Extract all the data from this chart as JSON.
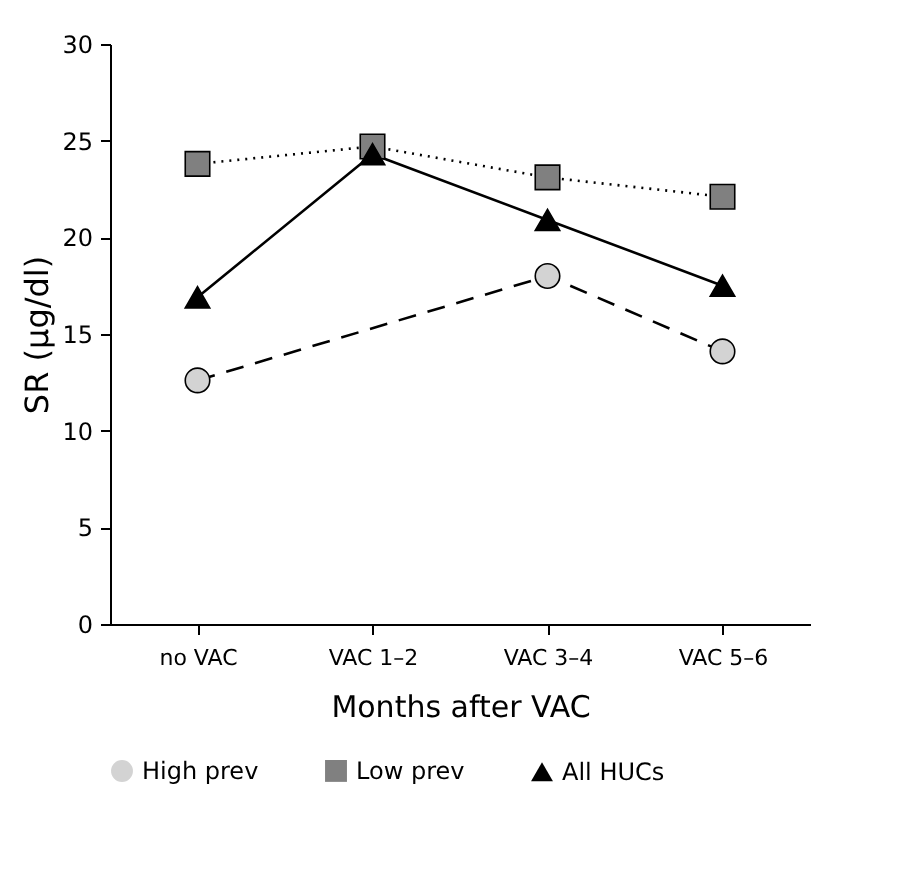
{
  "chart_data": {
    "type": "line",
    "xlabel": "Months after VAC",
    "ylabel": "SR (µg/dl)",
    "categories": [
      "no VAC",
      "VAC 1–2",
      "VAC 3–4",
      "VAC 5–6"
    ],
    "series": [
      {
        "name": "High prev",
        "color": "#d3d3d3",
        "marker": "circle",
        "line_style": "dashed",
        "values": [
          12.6,
          null,
          18.0,
          14.1
        ]
      },
      {
        "name": "Low prev",
        "color": "#808080",
        "marker": "square",
        "line_style": "dotted",
        "values": [
          23.8,
          24.7,
          23.1,
          22.1
        ]
      },
      {
        "name": "All HUCs",
        "color": "#000000",
        "marker": "triangle",
        "line_style": "solid",
        "values": [
          16.9,
          24.3,
          20.9,
          17.5
        ]
      }
    ],
    "ylim": [
      0,
      30
    ],
    "yticks": [
      0,
      5,
      10,
      15,
      20,
      25,
      30
    ],
    "grid": false,
    "legend": "bottom"
  }
}
